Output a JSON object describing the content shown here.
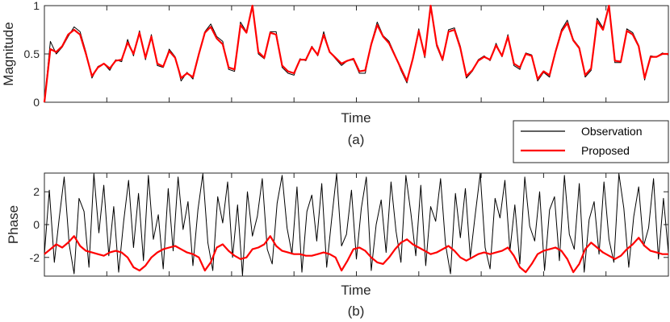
{
  "chart_data": [
    {
      "type": "line",
      "caption": "(a)",
      "xlabel": "Time",
      "ylabel": "Magnitude",
      "ylim": [
        0,
        1
      ],
      "yticks": [
        0,
        0.5,
        1
      ],
      "ytick_labels": [
        "0",
        "0.5",
        "1"
      ],
      "xticks_labeled": false,
      "grid": false,
      "legend": {
        "placement": "bottom-right",
        "entries": [
          {
            "name": "Observation",
            "color": "#000000"
          },
          {
            "name": "Proposed",
            "color": "#ff0000"
          }
        ]
      },
      "series": [
        {
          "name": "Observation",
          "color": "#000000",
          "values": [
            0.0,
            0.63,
            0.5,
            0.57,
            0.68,
            0.78,
            0.73,
            0.52,
            0.25,
            0.37,
            0.4,
            0.33,
            0.44,
            0.42,
            0.65,
            0.48,
            0.74,
            0.44,
            0.7,
            0.38,
            0.36,
            0.55,
            0.47,
            0.22,
            0.31,
            0.24,
            0.49,
            0.73,
            0.81,
            0.68,
            0.63,
            0.34,
            0.32,
            0.83,
            0.73,
            1.02,
            0.5,
            0.45,
            0.73,
            0.73,
            0.36,
            0.3,
            0.28,
            0.45,
            0.43,
            0.58,
            0.48,
            0.73,
            0.52,
            0.45,
            0.38,
            0.43,
            0.44,
            0.3,
            0.3,
            0.61,
            0.83,
            0.69,
            0.63,
            0.49,
            0.33,
            0.2,
            0.46,
            0.76,
            0.46,
            1.02,
            0.58,
            0.43,
            0.75,
            0.77,
            0.58,
            0.25,
            0.32,
            0.44,
            0.48,
            0.43,
            0.61,
            0.47,
            0.7,
            0.38,
            0.34,
            0.51,
            0.49,
            0.22,
            0.31,
            0.26,
            0.53,
            0.75,
            0.85,
            0.65,
            0.57,
            0.26,
            0.33,
            0.87,
            0.77,
            1.02,
            0.41,
            0.41,
            0.76,
            0.72,
            0.59,
            0.23,
            0.48,
            0.47,
            0.51,
            0.49
          ]
        },
        {
          "name": "Proposed",
          "color": "#ff0000",
          "values": [
            0.0,
            0.55,
            0.52,
            0.58,
            0.7,
            0.75,
            0.7,
            0.5,
            0.27,
            0.36,
            0.4,
            0.35,
            0.43,
            0.44,
            0.62,
            0.5,
            0.72,
            0.46,
            0.68,
            0.4,
            0.37,
            0.53,
            0.46,
            0.25,
            0.3,
            0.26,
            0.5,
            0.72,
            0.78,
            0.66,
            0.6,
            0.36,
            0.34,
            0.8,
            0.72,
            1.0,
            0.52,
            0.46,
            0.72,
            0.7,
            0.38,
            0.32,
            0.3,
            0.44,
            0.44,
            0.57,
            0.49,
            0.7,
            0.52,
            0.46,
            0.4,
            0.43,
            0.45,
            0.32,
            0.33,
            0.6,
            0.8,
            0.68,
            0.61,
            0.48,
            0.35,
            0.22,
            0.45,
            0.74,
            0.48,
            1.0,
            0.6,
            0.44,
            0.73,
            0.75,
            0.56,
            0.27,
            0.33,
            0.43,
            0.47,
            0.44,
            0.59,
            0.48,
            0.68,
            0.4,
            0.36,
            0.5,
            0.48,
            0.24,
            0.32,
            0.28,
            0.52,
            0.73,
            0.82,
            0.64,
            0.56,
            0.28,
            0.35,
            0.84,
            0.75,
            1.0,
            0.43,
            0.42,
            0.74,
            0.7,
            0.58,
            0.25,
            0.47,
            0.47,
            0.5,
            0.5
          ]
        }
      ]
    },
    {
      "type": "line",
      "caption": "(b)",
      "xlabel": "Time",
      "ylabel": "Phase",
      "ylim": [
        -3.14,
        3.14
      ],
      "yticks": [
        -2,
        0,
        2
      ],
      "ytick_labels": [
        "-2",
        "0",
        "2"
      ],
      "xticks_labeled": false,
      "grid": false,
      "series": [
        {
          "name": "Observation",
          "color": "#000000",
          "values": [
            -1.8,
            2.1,
            -2.3,
            0.4,
            2.9,
            -1.2,
            -3.0,
            1.6,
            0.8,
            -2.6,
            3.1,
            -0.5,
            2.4,
            -1.9,
            1.1,
            -2.9,
            0.2,
            2.7,
            -1.4,
            1.9,
            -2.2,
            3.0,
            -0.9,
            0.6,
            -2.7,
            2.2,
            -1.6,
            2.9,
            -0.3,
            1.4,
            -2.5,
            0.9,
            3.1,
            -1.1,
            -2.8,
            1.7,
            0.1,
            2.6,
            -2.0,
            1.2,
            -3.1,
            2.0,
            -0.7,
            0.5,
            2.8,
            -1.5,
            -2.4,
            1.3,
            3.0,
            -0.2,
            -1.8,
            2.3,
            -2.9,
            0.8,
            1.8,
            -1.0,
            2.5,
            -2.6,
            0.3,
            3.1,
            -1.3,
            -0.6,
            2.1,
            -2.1,
            1.0,
            2.9,
            -2.8,
            0.0,
            1.5,
            -1.7,
            2.6,
            -0.4,
            -2.3,
            3.0,
            0.7,
            -1.9,
            2.4,
            -2.5,
            1.1,
            0.2,
            2.8,
            -1.2,
            -3.0,
            1.9,
            -0.8,
            2.2,
            -2.0,
            0.6,
            3.1,
            -1.4,
            -2.7,
            1.6,
            0.4,
            2.7,
            -1.6,
            1.2,
            -2.4,
            2.9,
            -0.1,
            -1.0,
            2.0,
            -2.8,
            0.9,
            1.7,
            -2.2,
            3.0,
            -0.6,
            -1.5,
            2.5,
            -2.9,
            0.3,
            1.4,
            -1.8,
            2.6,
            -0.9,
            -2.3,
            3.1,
            1.0,
            -2.6,
            0.5,
            2.3,
            -1.3,
            -0.2,
            2.8,
            -2.1,
            1.6,
            -1.7
          ]
        },
        {
          "name": "Proposed",
          "color": "#ff0000",
          "values": [
            -1.8,
            -1.5,
            -1.2,
            -1.4,
            -1.1,
            -0.7,
            -1.3,
            -1.6,
            -1.7,
            -1.8,
            -1.9,
            -1.7,
            -1.6,
            -1.7,
            -2.0,
            -2.6,
            -2.8,
            -2.5,
            -2.0,
            -1.7,
            -1.5,
            -1.4,
            -1.3,
            -1.5,
            -1.7,
            -1.8,
            -2.0,
            -2.8,
            -2.3,
            -1.4,
            -1.2,
            -1.6,
            -1.9,
            -2.1,
            -2.0,
            -1.5,
            -1.4,
            -1.2,
            -0.7,
            -1.3,
            -1.6,
            -1.7,
            -1.8,
            -1.8,
            -1.9,
            -1.9,
            -1.8,
            -1.7,
            -1.8,
            -2.0,
            -2.8,
            -2.2,
            -1.5,
            -1.4,
            -1.6,
            -2.0,
            -2.3,
            -2.4,
            -2.0,
            -1.5,
            -1.1,
            -0.9,
            -1.2,
            -1.4,
            -1.6,
            -1.8,
            -1.7,
            -1.5,
            -1.3,
            -1.6,
            -2.0,
            -2.2,
            -2.0,
            -1.8,
            -1.7,
            -1.8,
            -1.7,
            -1.6,
            -1.4,
            -1.9,
            -2.6,
            -2.9,
            -2.4,
            -1.8,
            -1.6,
            -1.5,
            -1.4,
            -1.6,
            -2.1,
            -2.9,
            -2.4,
            -1.5,
            -1.1,
            -1.4,
            -1.7,
            -1.9,
            -2.1,
            -1.9,
            -1.5,
            -1.2,
            -0.8,
            -1.3,
            -1.6,
            -1.7,
            -1.8,
            -1.8
          ]
        }
      ]
    }
  ]
}
